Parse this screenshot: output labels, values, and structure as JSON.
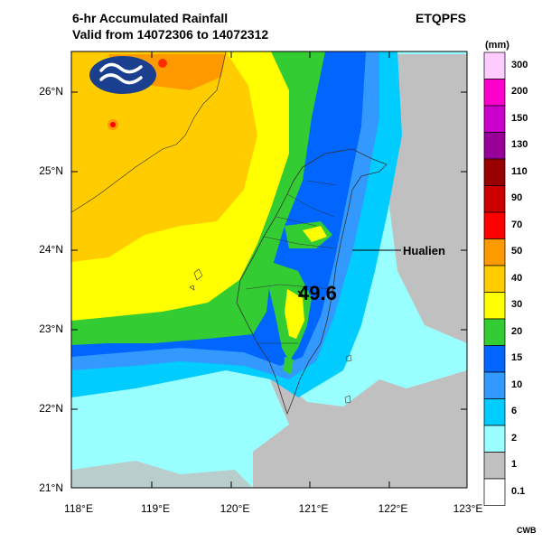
{
  "header": {
    "title_line1": "6-hr Accumulated Rainfall",
    "title_line2": "Valid from 14072306 to 14072312",
    "model": "ETQPFS"
  },
  "map": {
    "lat_labels": [
      "26°N",
      "25°N",
      "24°N",
      "23°N",
      "22°N",
      "21°N"
    ],
    "lon_labels": [
      "118°E",
      "119°E",
      "120°E",
      "121°E",
      "122°E",
      "123°E"
    ],
    "max_value_label": "49.6",
    "place_label": "Hualien",
    "logo_icon": "cwb-logo-icon"
  },
  "legend": {
    "unit": "(mm)",
    "levels": [
      "300",
      "200",
      "150",
      "130",
      "110",
      "90",
      "70",
      "50",
      "40",
      "30",
      "20",
      "15",
      "10",
      "6",
      "2",
      "1",
      "0.1"
    ],
    "colors": [
      "#ffccff",
      "#ff00cc",
      "#cc00cc",
      "#990099",
      "#990000",
      "#cc0000",
      "#ff0000",
      "#ff9900",
      "#ffcc00",
      "#ffff00",
      "#33cc33",
      "#0066ff",
      "#3399ff",
      "#00ccff",
      "#99ffff",
      "#c0c0c0",
      "#ffffff"
    ]
  },
  "footer": {
    "credit": "CWB"
  }
}
